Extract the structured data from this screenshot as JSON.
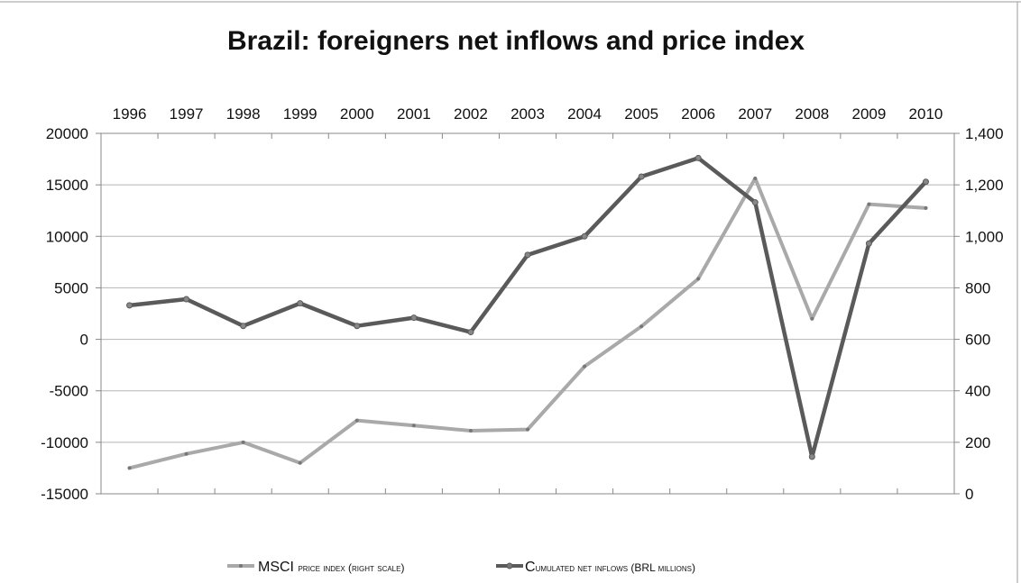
{
  "chart_data": {
    "type": "line",
    "title": "Brazil: foreigners net inflows and price index",
    "categories": [
      "1996",
      "1997",
      "1998",
      "1999",
      "2000",
      "2001",
      "2002",
      "2003",
      "2004",
      "2005",
      "2006",
      "2007",
      "2008",
      "2009",
      "2010"
    ],
    "left_axis": {
      "ylim": [
        -15000,
        20000
      ],
      "ticks": [
        "20000",
        "15000",
        "10000",
        "5000",
        "0",
        "-5000",
        "-10000",
        "-15000"
      ],
      "tick_values": [
        20000,
        15000,
        10000,
        5000,
        0,
        -5000,
        -10000,
        -15000
      ]
    },
    "right_axis": {
      "ylim": [
        0,
        1400
      ],
      "ticks": [
        "1,400",
        "1,200",
        "1,000",
        "800",
        "600",
        "400",
        "200",
        "0"
      ],
      "tick_values": [
        1400,
        1200,
        1000,
        800,
        600,
        400,
        200,
        0
      ]
    },
    "series": [
      {
        "name": "MSCI price index (right scale)",
        "axis": "right",
        "color": "#a9a9a9",
        "values": [
          100,
          155,
          200,
          120,
          285,
          265,
          245,
          250,
          495,
          650,
          835,
          1225,
          680,
          1125,
          1110
        ]
      },
      {
        "name": "Cumulated net inflows (BRL millions)",
        "axis": "left",
        "color": "#5a5a5a",
        "values": [
          3300,
          3900,
          1300,
          3500,
          1300,
          2100,
          700,
          8200,
          10000,
          15800,
          17600,
          13300,
          -11400,
          9300,
          15300
        ]
      }
    ],
    "grid": true,
    "legend_position": "bottom"
  },
  "legend": {
    "msci": {
      "part1": "MSCI ",
      "part2": "price index (right scale)"
    },
    "inflows": {
      "part1": "C",
      "part2": "umulated net inflows (BRL millions)"
    }
  }
}
